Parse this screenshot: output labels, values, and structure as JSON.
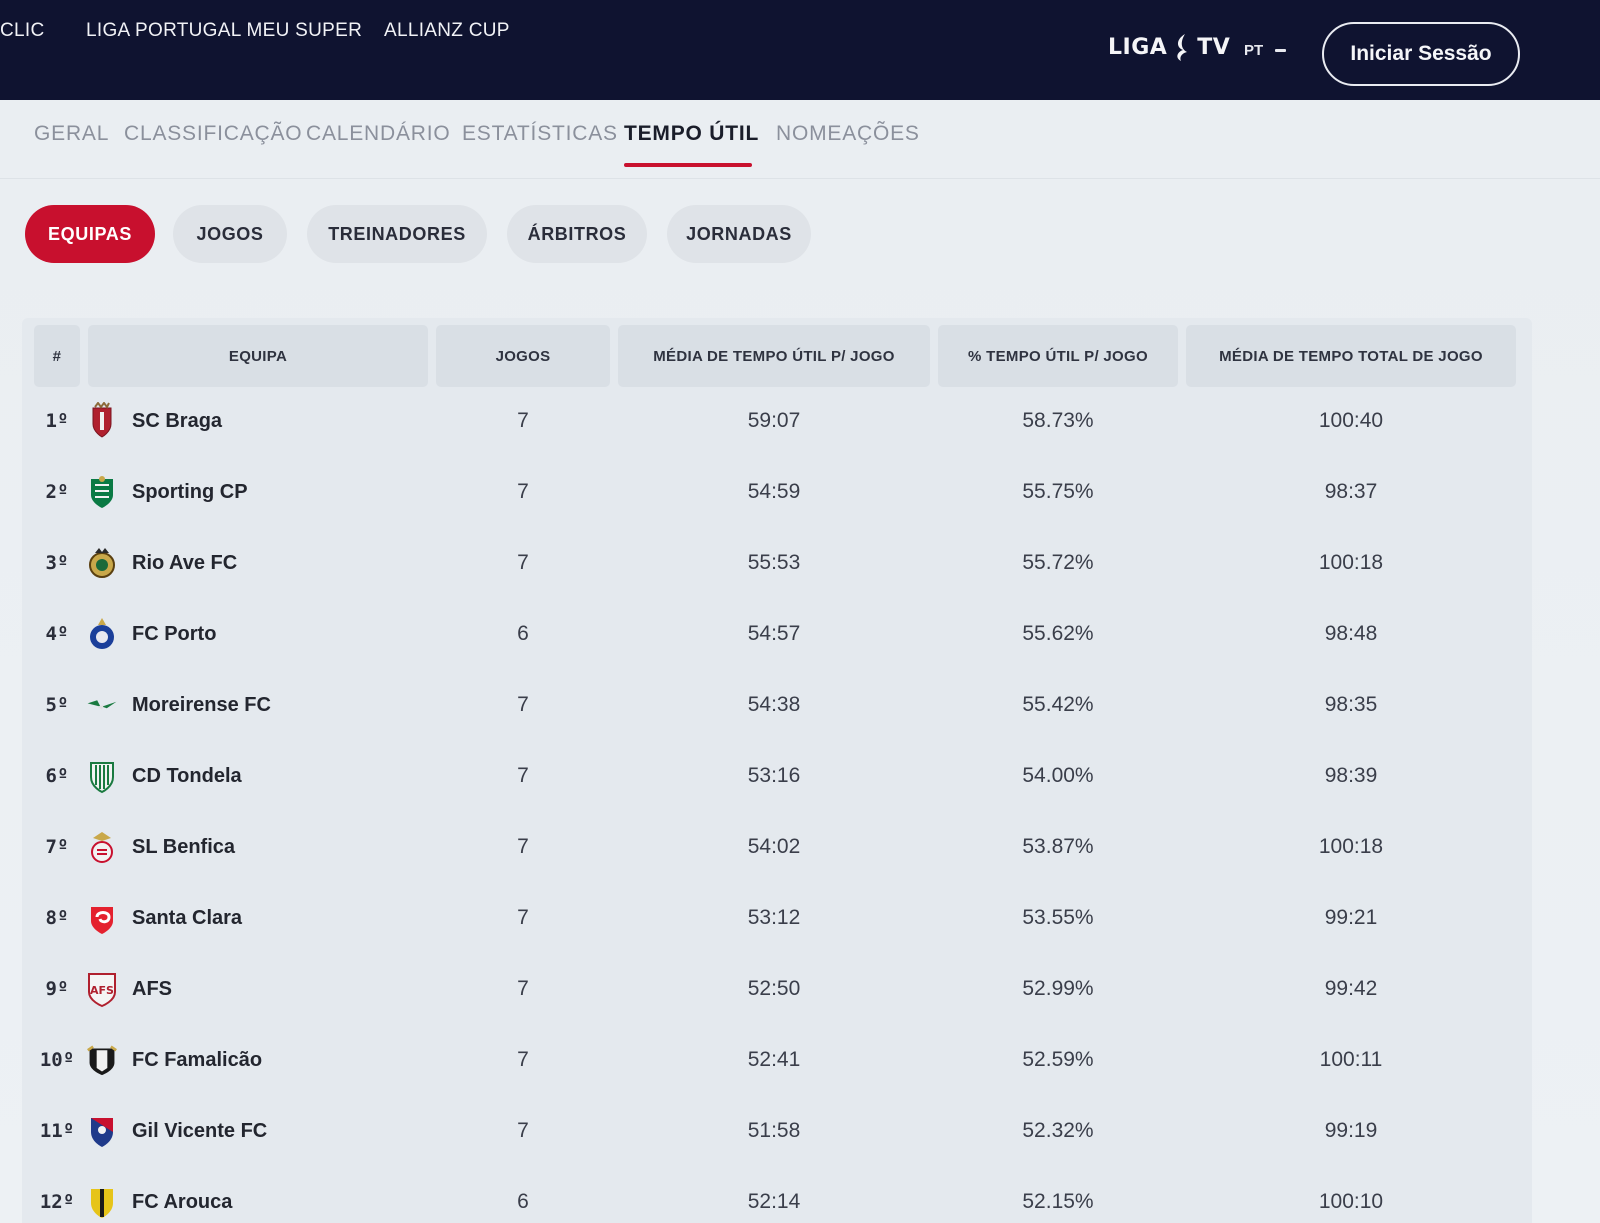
{
  "topnav": {
    "items": [
      {
        "label": "CLIC"
      },
      {
        "label": "LIGA PORTUGAL MEU SUPER"
      },
      {
        "label": "ALLIANZ CUP"
      }
    ],
    "logo": {
      "left": "LIGA",
      "right": "TV"
    },
    "lang": "PT",
    "login_label": "Iniciar Sessão"
  },
  "tabs": [
    {
      "label": "GERAL"
    },
    {
      "label": "CLASSIFICAÇÃO"
    },
    {
      "label": "CALENDÁRIO"
    },
    {
      "label": "ESTATÍSTICAS"
    },
    {
      "label": "TEMPO ÚTIL",
      "active": true
    },
    {
      "label": "NOMEAÇÕES"
    }
  ],
  "subtabs": [
    {
      "label": "EQUIPAS",
      "active": true
    },
    {
      "label": "JOGOS"
    },
    {
      "label": "TREINADORES"
    },
    {
      "label": "ÁRBITROS"
    },
    {
      "label": "JORNADAS"
    }
  ],
  "table": {
    "headers": {
      "rank": "#",
      "team": "EQUIPA",
      "games": "JOGOS",
      "avg_useful": "MÉDIA DE TEMPO ÚTIL P/ JOGO",
      "pct_useful": "% TEMPO ÚTIL P/ JOGO",
      "avg_total": "MÉDIA DE TEMPO TOTAL DE JOGO"
    },
    "rows": [
      {
        "rank": "1º",
        "team": "SC Braga",
        "crest": "braga-crest-icon",
        "games": "7",
        "avg_useful": "59:07",
        "pct_useful": "58.73%",
        "avg_total": "100:40"
      },
      {
        "rank": "2º",
        "team": "Sporting CP",
        "crest": "sporting-crest-icon",
        "games": "7",
        "avg_useful": "54:59",
        "pct_useful": "55.75%",
        "avg_total": "98:37"
      },
      {
        "rank": "3º",
        "team": "Rio Ave FC",
        "crest": "rio-ave-crest-icon",
        "games": "7",
        "avg_useful": "55:53",
        "pct_useful": "55.72%",
        "avg_total": "100:18"
      },
      {
        "rank": "4º",
        "team": "FC Porto",
        "crest": "porto-crest-icon",
        "games": "6",
        "avg_useful": "54:57",
        "pct_useful": "55.62%",
        "avg_total": "98:48"
      },
      {
        "rank": "5º",
        "team": "Moreirense FC",
        "crest": "moreirense-crest-icon",
        "games": "7",
        "avg_useful": "54:38",
        "pct_useful": "55.42%",
        "avg_total": "98:35"
      },
      {
        "rank": "6º",
        "team": "CD Tondela",
        "crest": "tondela-crest-icon",
        "games": "7",
        "avg_useful": "53:16",
        "pct_useful": "54.00%",
        "avg_total": "98:39"
      },
      {
        "rank": "7º",
        "team": "SL Benfica",
        "crest": "benfica-crest-icon",
        "games": "7",
        "avg_useful": "54:02",
        "pct_useful": "53.87%",
        "avg_total": "100:18"
      },
      {
        "rank": "8º",
        "team": "Santa Clara",
        "crest": "santa-clara-crest-icon",
        "games": "7",
        "avg_useful": "53:12",
        "pct_useful": "53.55%",
        "avg_total": "99:21"
      },
      {
        "rank": "9º",
        "team": "AFS",
        "crest": "afs-crest-icon",
        "games": "7",
        "avg_useful": "52:50",
        "pct_useful": "52.99%",
        "avg_total": "99:42"
      },
      {
        "rank": "10º",
        "team": "FC Famalicão",
        "crest": "famalicao-crest-icon",
        "games": "7",
        "avg_useful": "52:41",
        "pct_useful": "52.59%",
        "avg_total": "100:11"
      },
      {
        "rank": "11º",
        "team": "Gil Vicente FC",
        "crest": "gil-vicente-crest-icon",
        "games": "7",
        "avg_useful": "51:58",
        "pct_useful": "52.32%",
        "avg_total": "99:19"
      },
      {
        "rank": "12º",
        "team": "FC Arouca",
        "crest": "arouca-crest-icon",
        "games": "6",
        "avg_useful": "52:14",
        "pct_useful": "52.15%",
        "avg_total": "100:10"
      }
    ]
  },
  "colors": {
    "accent": "#c8102e",
    "topbar": "#0f1330",
    "page_bg": "#eaeef2",
    "header_cell": "#d9dfe5"
  }
}
